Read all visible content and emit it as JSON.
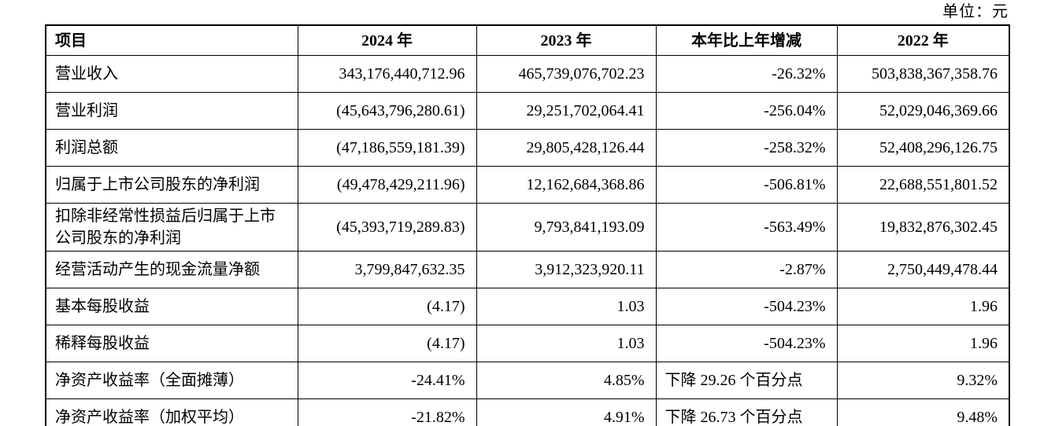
{
  "unit_label": "单位：元",
  "table": {
    "headers": [
      "项目",
      "2024 年",
      "2023 年",
      "本年比上年增减",
      "2022 年"
    ],
    "rows": [
      {
        "label": "营业收入",
        "y2024": "343,176,440,712.96",
        "y2023": "465,739,076,702.23",
        "change": "-26.32%",
        "y2022": "503,838,367,358.76"
      },
      {
        "label": "营业利润",
        "y2024": "(45,643,796,280.61)",
        "y2023": "29,251,702,064.41",
        "change": "-256.04%",
        "y2022": "52,029,046,369.66"
      },
      {
        "label": "利润总额",
        "y2024": "(47,186,559,181.39)",
        "y2023": "29,805,428,126.44",
        "change": "-258.32%",
        "y2022": "52,408,296,126.75"
      },
      {
        "label": "归属于上市公司股东的净利润",
        "y2024": "(49,478,429,211.96)",
        "y2023": "12,162,684,368.86",
        "change": "-506.81%",
        "y2022": "22,688,551,801.52"
      },
      {
        "label": "扣除非经常性损益后归属于上市公司股东的净利润",
        "y2024": "(45,393,719,289.83)",
        "y2023": "9,793,841,193.09",
        "change": "-563.49%",
        "y2022": "19,832,876,302.45"
      },
      {
        "label": "经营活动产生的现金流量净额",
        "y2024": "3,799,847,632.35",
        "y2023": "3,912,323,920.11",
        "change": "-2.87%",
        "y2022": "2,750,449,478.44"
      },
      {
        "label": "基本每股收益",
        "y2024": "(4.17)",
        "y2023": "1.03",
        "change": "-504.23%",
        "y2022": "1.96"
      },
      {
        "label": "稀释每股收益",
        "y2024": "(4.17)",
        "y2023": "1.03",
        "change": "-504.23%",
        "y2022": "1.96"
      },
      {
        "label": "净资产收益率（全面摊薄）",
        "y2024": "-24.41%",
        "y2023": "4.85%",
        "change": "下降 29.26 个百分点",
        "y2022": "9.32%",
        "change_align": "left"
      },
      {
        "label": "净资产收益率（加权平均）",
        "y2024": "-21.82%",
        "y2023": "4.91%",
        "change": "下降 26.73 个百分点",
        "y2022": "9.48%",
        "change_align": "left"
      }
    ]
  }
}
